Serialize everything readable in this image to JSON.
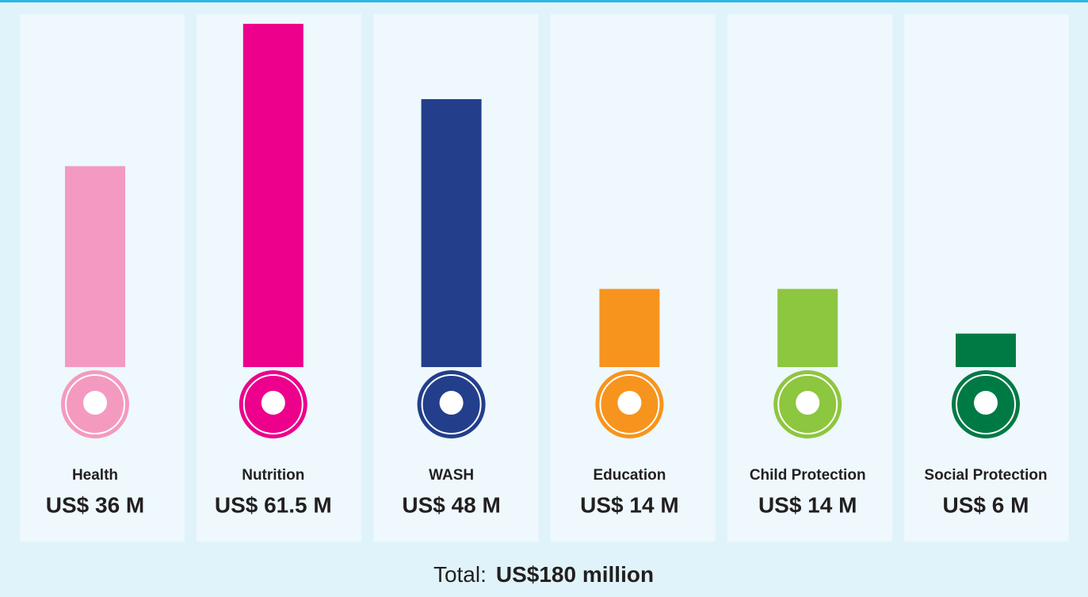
{
  "chart_data": {
    "type": "bar",
    "categories": [
      "Health",
      "Nutrition",
      "WASH",
      "Education",
      "Child Protection",
      "Social Protection"
    ],
    "values": [
      36,
      61.5,
      48,
      14,
      14,
      6
    ],
    "value_labels": [
      "US$ 36 M",
      "US$ 61.5 M",
      "US$ 48 M",
      "US$ 14 M",
      "US$ 14 M",
      "US$ 6 M"
    ],
    "colors": [
      "#f49ac1",
      "#ec008c",
      "#233e8b",
      "#f7941d",
      "#8dc63f",
      "#007a45"
    ],
    "total_label": "Total:",
    "total_value": "US$180 million"
  }
}
